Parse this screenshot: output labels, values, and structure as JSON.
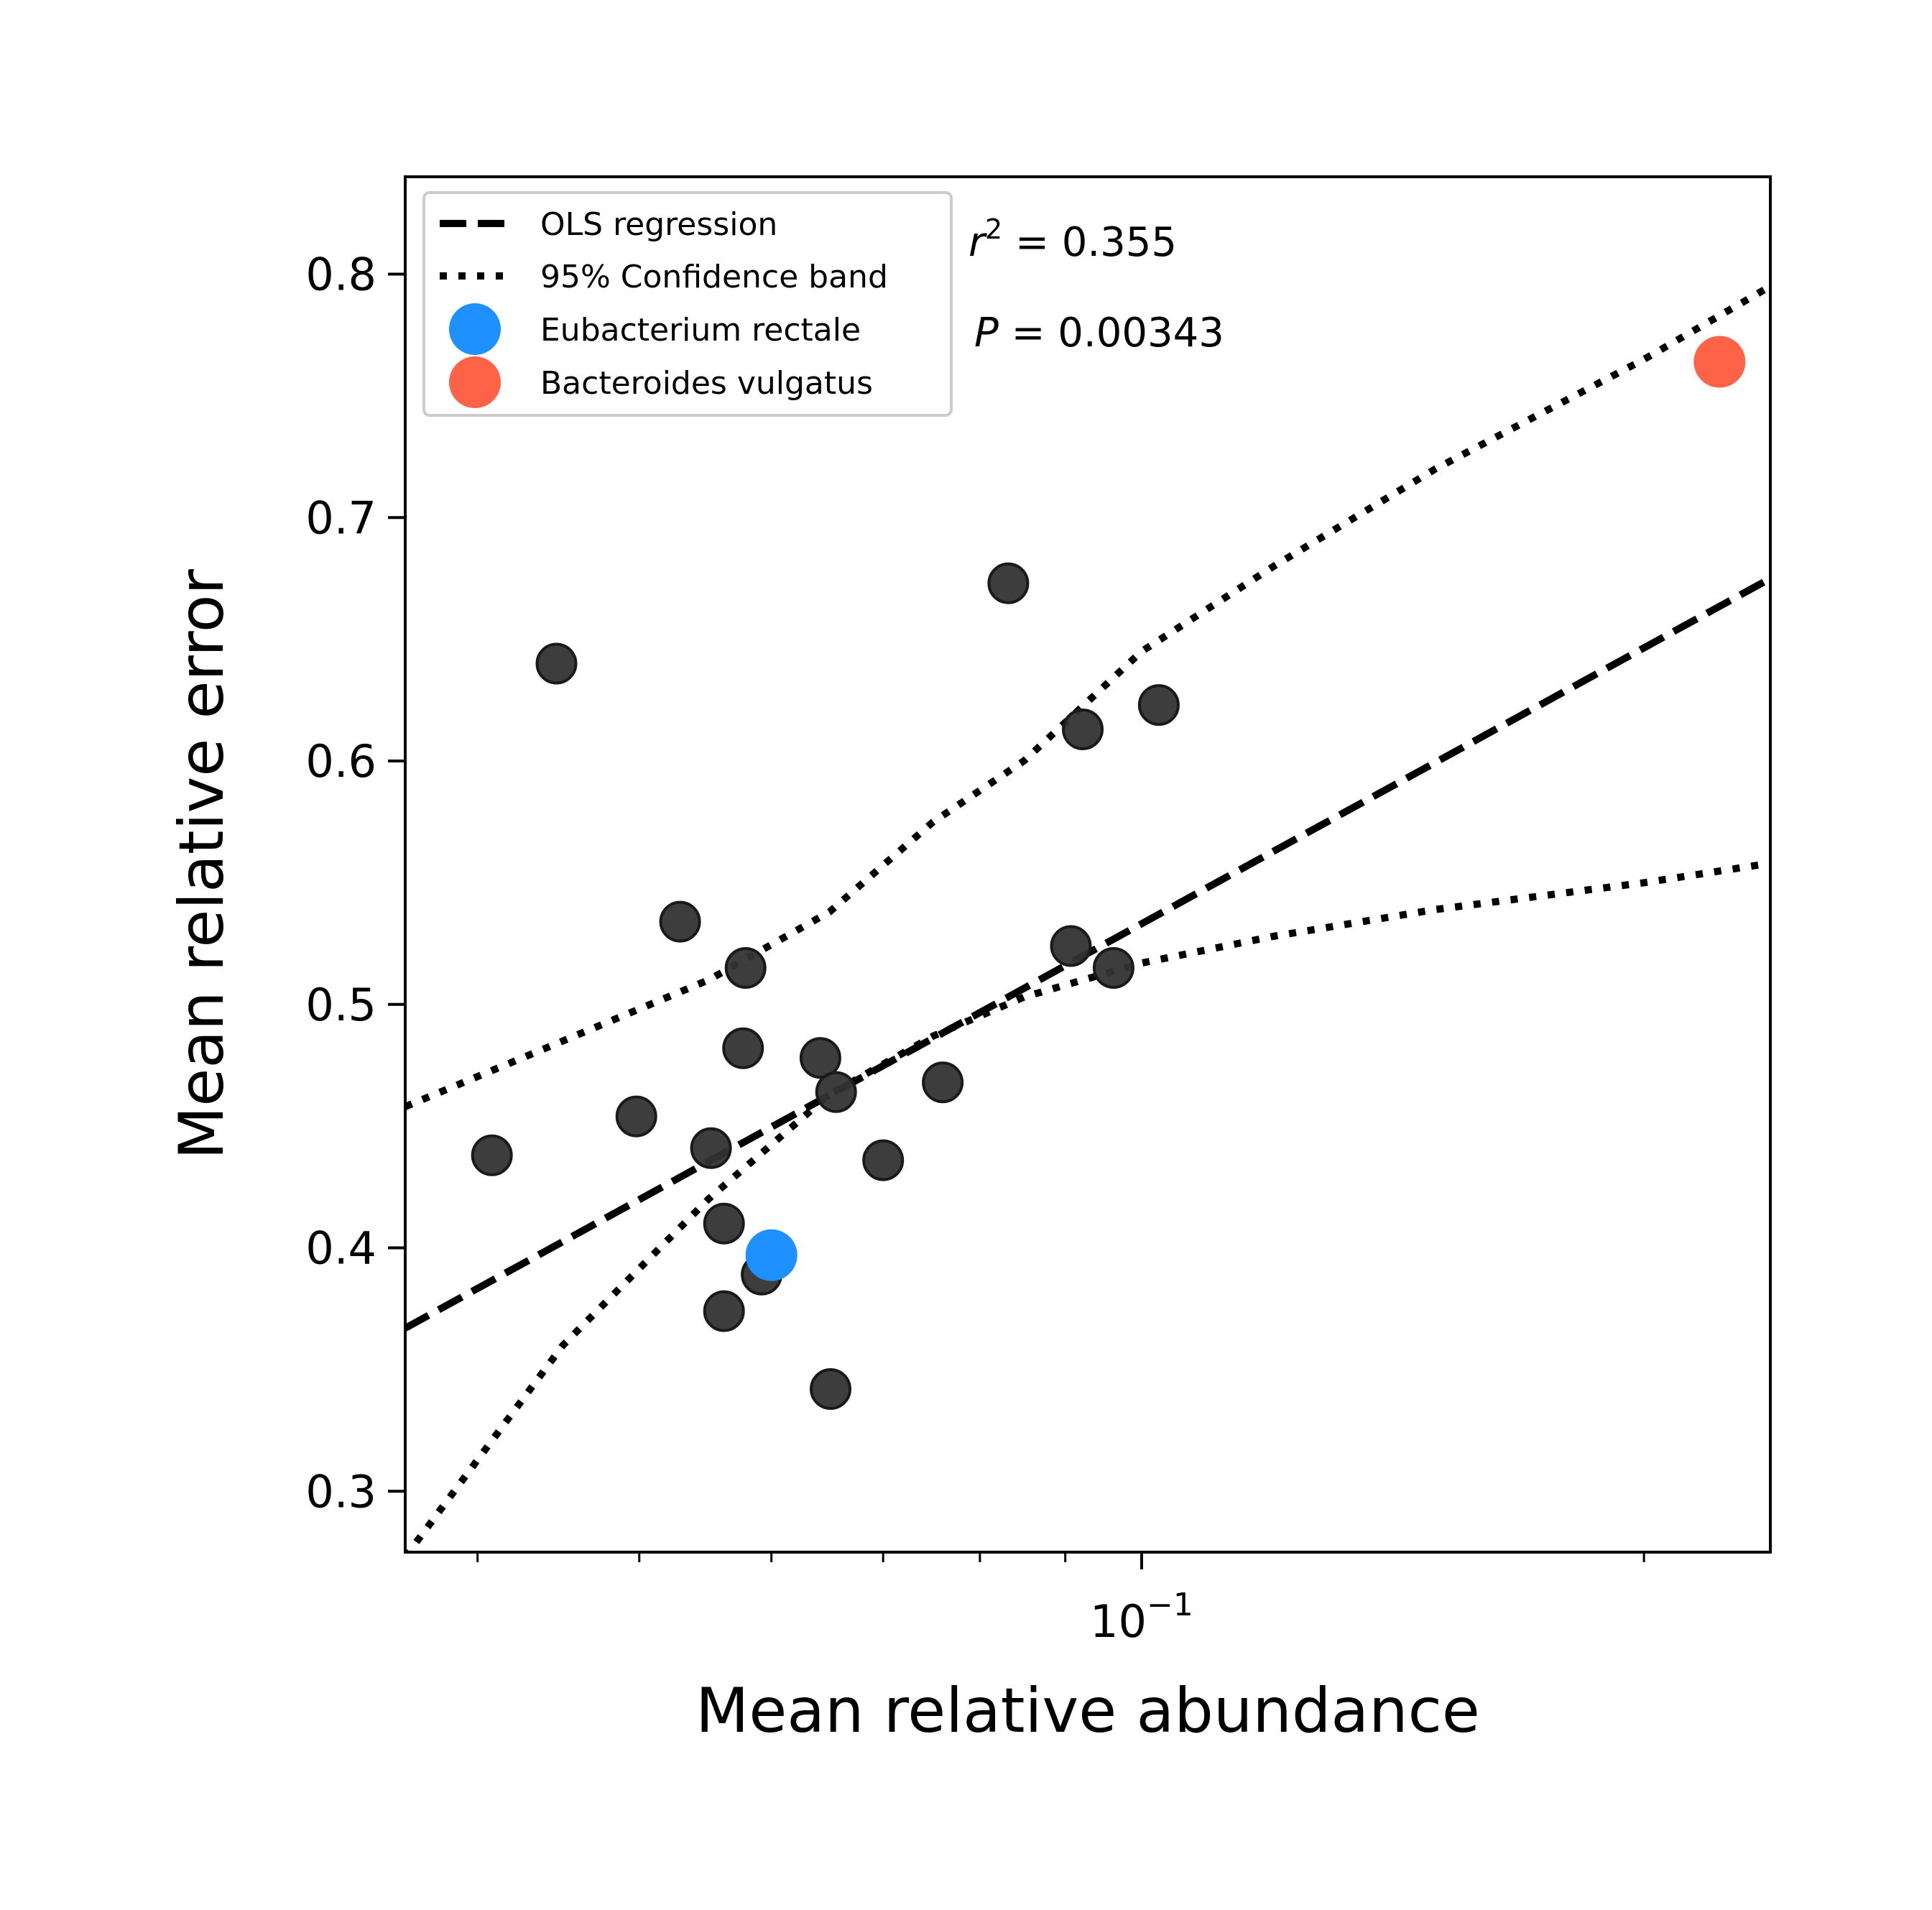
{
  "chart_data": {
    "type": "scatter",
    "xlabel": "Mean relative abundance",
    "ylabel": "Mean relative error",
    "xscale": "log",
    "xlim": [
      0.0362,
      0.2381
    ],
    "ylim": [
      0.275,
      0.84
    ],
    "x_major_ticks": [
      {
        "value": 0.1,
        "base": "10",
        "exponent": "−1"
      }
    ],
    "x_minor_ticks": [
      0.04,
      0.05,
      0.06,
      0.07,
      0.08,
      0.09,
      0.2
    ],
    "y_ticks": [
      0.3,
      0.4,
      0.5,
      0.6,
      0.7,
      0.8
    ],
    "y_tick_labels": [
      "0.3",
      "0.4",
      "0.5",
      "0.6",
      "0.7",
      "0.8"
    ],
    "grid": false,
    "legend": {
      "position": "upper-left",
      "entries": [
        {
          "label": "OLS regression",
          "style": "dashed"
        },
        {
          "label": "95% Confidence band",
          "style": "dotted"
        },
        {
          "label": "Eubacterium rectale",
          "style": "marker",
          "color": "#1e90ff"
        },
        {
          "label": "Bacteroides vulgatus",
          "style": "marker",
          "color": "#ff6347"
        }
      ]
    },
    "annotations": {
      "r2_symbol": "r",
      "r2_exponent": "2",
      "r2_value": " = 0.355",
      "p_symbol": "P",
      "p_value": " = 0.00343"
    },
    "series": [
      {
        "kind": "points",
        "color": "#333333",
        "points": [
          {
            "x": 0.0408,
            "y": 0.438
          },
          {
            "x": 0.0446,
            "y": 0.64
          },
          {
            "x": 0.0498,
            "y": 0.454
          },
          {
            "x": 0.0529,
            "y": 0.534
          },
          {
            "x": 0.0552,
            "y": 0.441
          },
          {
            "x": 0.0562,
            "y": 0.41
          },
          {
            "x": 0.0562,
            "y": 0.374
          },
          {
            "x": 0.0577,
            "y": 0.482
          },
          {
            "x": 0.0579,
            "y": 0.515
          },
          {
            "x": 0.0592,
            "y": 0.389
          },
          {
            "x": 0.0642,
            "y": 0.478
          },
          {
            "x": 0.0651,
            "y": 0.342
          },
          {
            "x": 0.0656,
            "y": 0.464
          },
          {
            "x": 0.07,
            "y": 0.436
          },
          {
            "x": 0.076,
            "y": 0.468
          },
          {
            "x": 0.0832,
            "y": 0.673
          },
          {
            "x": 0.0907,
            "y": 0.524
          },
          {
            "x": 0.0922,
            "y": 0.613
          },
          {
            "x": 0.0962,
            "y": 0.515
          },
          {
            "x": 0.1024,
            "y": 0.623
          }
        ]
      },
      {
        "kind": "points",
        "name": "Eubacterium rectale",
        "color": "#1e90ff",
        "points": [
          {
            "x": 0.06,
            "y": 0.397
          }
        ]
      },
      {
        "kind": "points",
        "name": "Bacteroides vulgatus",
        "color": "#ff6347",
        "points": [
          {
            "x": 0.222,
            "y": 0.764
          }
        ]
      },
      {
        "kind": "line",
        "name": "OLS regression",
        "style": "dashed",
        "color": "#000000",
        "points": [
          {
            "x": 0.0362,
            "y": 0.367
          },
          {
            "x": 0.2381,
            "y": 0.675
          }
        ]
      },
      {
        "kind": "line",
        "name": "95% Confidence band upper",
        "style": "dotted",
        "color": "#000000",
        "points": [
          {
            "x": 0.0362,
            "y": 0.458
          },
          {
            "x": 0.045,
            "y": 0.485
          },
          {
            "x": 0.055,
            "y": 0.51
          },
          {
            "x": 0.065,
            "y": 0.538
          },
          {
            "x": 0.075,
            "y": 0.575
          },
          {
            "x": 0.085,
            "y": 0.6
          },
          {
            "x": 0.1,
            "y": 0.645
          },
          {
            "x": 0.12,
            "y": 0.68
          },
          {
            "x": 0.15,
            "y": 0.72
          },
          {
            "x": 0.2,
            "y": 0.765
          },
          {
            "x": 0.2381,
            "y": 0.795
          }
        ]
      },
      {
        "kind": "line",
        "name": "95% Confidence band lower",
        "style": "dotted",
        "color": "#000000",
        "points": [
          {
            "x": 0.0362,
            "y": 0.273
          },
          {
            "x": 0.045,
            "y": 0.36
          },
          {
            "x": 0.055,
            "y": 0.42
          },
          {
            "x": 0.065,
            "y": 0.463
          },
          {
            "x": 0.075,
            "y": 0.487
          },
          {
            "x": 0.085,
            "y": 0.503
          },
          {
            "x": 0.1,
            "y": 0.517
          },
          {
            "x": 0.12,
            "y": 0.528
          },
          {
            "x": 0.15,
            "y": 0.539
          },
          {
            "x": 0.2,
            "y": 0.55
          },
          {
            "x": 0.2381,
            "y": 0.558
          }
        ]
      }
    ]
  }
}
